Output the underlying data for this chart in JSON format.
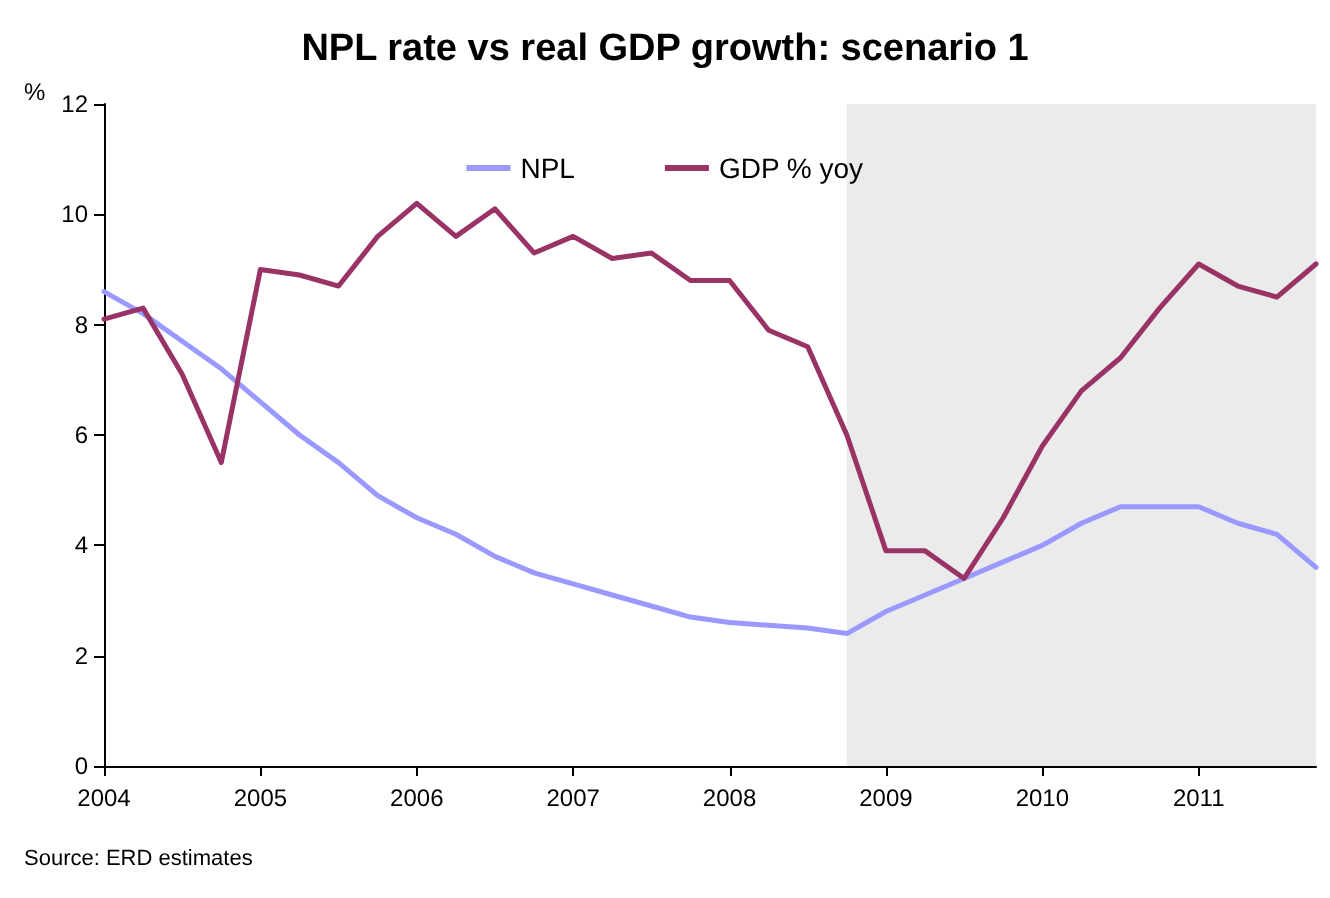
{
  "chart_data": {
    "type": "line",
    "title": "NPL rate vs real GDP growth: scenario 1",
    "ylabel": "%",
    "x": [
      2004,
      2004.25,
      2004.5,
      2004.75,
      2005,
      2005.25,
      2005.5,
      2005.75,
      2006,
      2006.25,
      2006.5,
      2006.75,
      2007,
      2007.25,
      2007.5,
      2007.75,
      2008,
      2008.25,
      2008.5,
      2008.75,
      2009,
      2009.25,
      2009.5,
      2009.75,
      2010,
      2010.25,
      2010.5,
      2010.75,
      2011,
      2011.25,
      2011.5,
      2011.75
    ],
    "series": [
      {
        "name": "NPL",
        "color": "#9999ff",
        "values": [
          8.6,
          8.2,
          7.7,
          7.2,
          6.6,
          6.0,
          5.5,
          4.9,
          4.5,
          4.2,
          3.8,
          3.5,
          3.3,
          3.1,
          2.9,
          2.7,
          2.6,
          2.55,
          2.5,
          2.4,
          2.8,
          3.1,
          3.4,
          3.7,
          4.0,
          4.4,
          4.7,
          4.7,
          4.7,
          4.4,
          4.2,
          3.6
        ]
      },
      {
        "name": "GDP % yoy",
        "color": "#993366",
        "values": [
          8.1,
          8.3,
          7.1,
          5.5,
          9.0,
          8.9,
          8.7,
          9.6,
          10.2,
          9.6,
          10.1,
          9.3,
          9.6,
          9.2,
          9.3,
          8.8,
          8.8,
          7.9,
          7.6,
          6.0,
          3.9,
          3.9,
          3.4,
          4.5,
          5.8,
          6.8,
          7.4,
          8.3,
          9.1,
          8.7,
          8.5,
          9.1
        ]
      }
    ],
    "xlim": [
      2004,
      2011.75
    ],
    "xticks": [
      2004,
      2005,
      2006,
      2007,
      2008,
      2009,
      2010,
      2011
    ],
    "ylim": [
      0,
      12
    ],
    "yticks": [
      0,
      2,
      4,
      6,
      8,
      10,
      12
    ],
    "bands": [
      {
        "axis": "x",
        "from": 2008.75,
        "to": 2011.75,
        "color": "#ebebeb"
      }
    ],
    "grid": false,
    "legend": "top",
    "marker": "none",
    "line_style": "solid",
    "annotations": [
      "Source: ERD estimates"
    ]
  }
}
